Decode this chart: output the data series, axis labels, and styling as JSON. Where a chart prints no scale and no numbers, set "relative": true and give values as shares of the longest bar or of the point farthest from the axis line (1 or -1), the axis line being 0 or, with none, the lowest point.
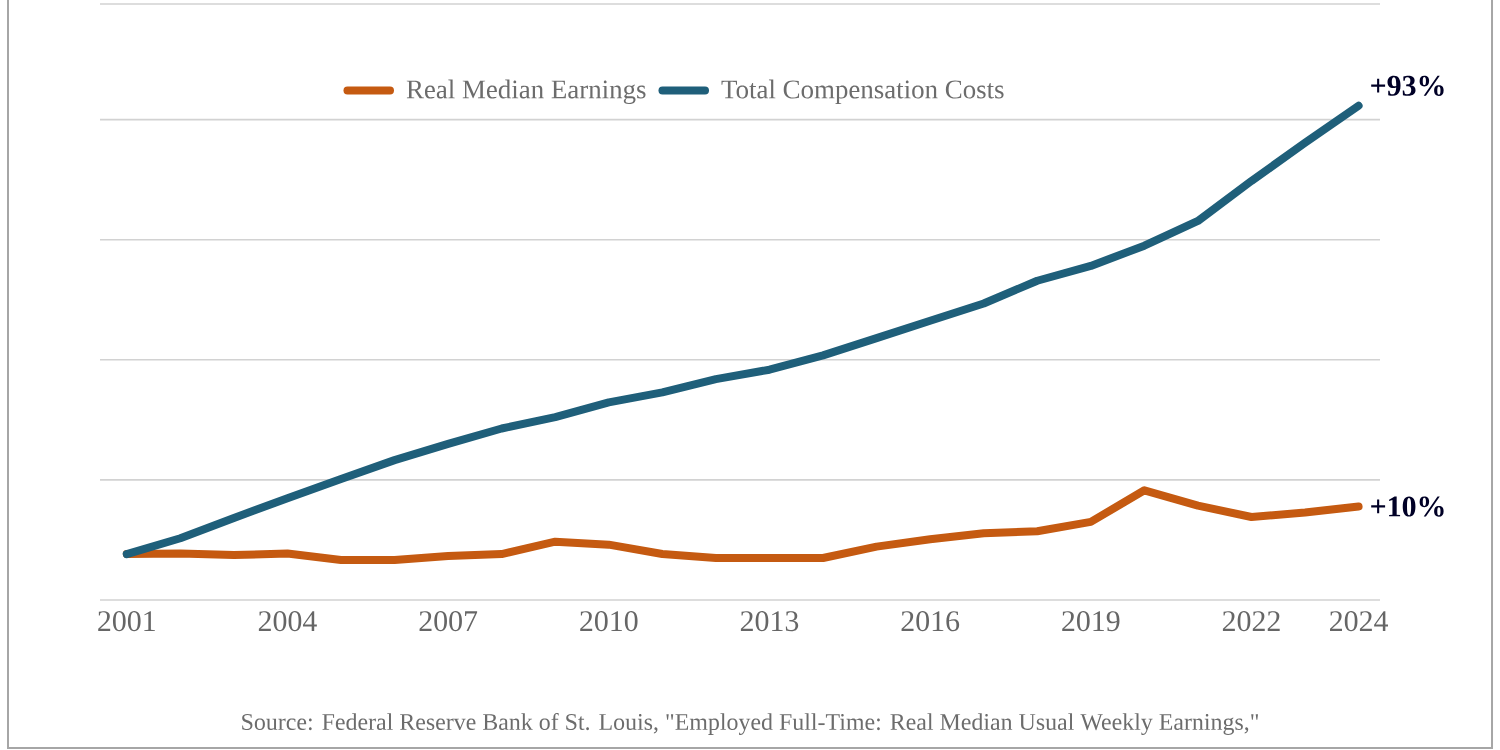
{
  "chart_data": {
    "type": "line",
    "relative": true,
    "grid": "y",
    "legend": "top",
    "line_style": "solid",
    "x": [
      2001,
      2002,
      2003,
      2004,
      2005,
      2006,
      2007,
      2008,
      2009,
      2010,
      2011,
      2012,
      2013,
      2014,
      2015,
      2016,
      2017,
      2018,
      2019,
      2020,
      2021,
      2022,
      2023,
      2024
    ],
    "xlim": [
      2000.5,
      2024.4
    ],
    "xticks": [
      2001,
      2004,
      2007,
      2010,
      2013,
      2016,
      2019,
      2022,
      2024
    ],
    "series": [
      {
        "name": "Real Median Earnings",
        "color": "#c55a11",
        "values": [
          0.093,
          0.094,
          0.091,
          0.094,
          0.081,
          0.081,
          0.089,
          0.093,
          0.118,
          0.112,
          0.093,
          0.085,
          0.085,
          0.085,
          0.108,
          0.123,
          0.135,
          0.139,
          0.158,
          0.222,
          0.191,
          0.168,
          0.177,
          0.189
        ]
      },
      {
        "name": "Total Compensation Costs",
        "color": "#1f5f7a",
        "values": [
          0.093,
          0.125,
          0.166,
          0.206,
          0.245,
          0.283,
          0.316,
          0.347,
          0.37,
          0.4,
          0.42,
          0.447,
          0.466,
          0.495,
          0.53,
          0.565,
          0.6,
          0.646,
          0.676,
          0.717,
          0.767,
          0.848,
          0.925,
          1.0
        ]
      }
    ],
    "annotations": [
      {
        "text": "+93%",
        "x": 2024,
        "y": 1.0
      },
      {
        "text": "+10%",
        "x": 2024,
        "y": 0.189
      },
      "Source: Federal Reserve Bank of St. Louis, \"Employed Full-Time: Real Median Usual Weekly Earnings,\""
    ]
  }
}
